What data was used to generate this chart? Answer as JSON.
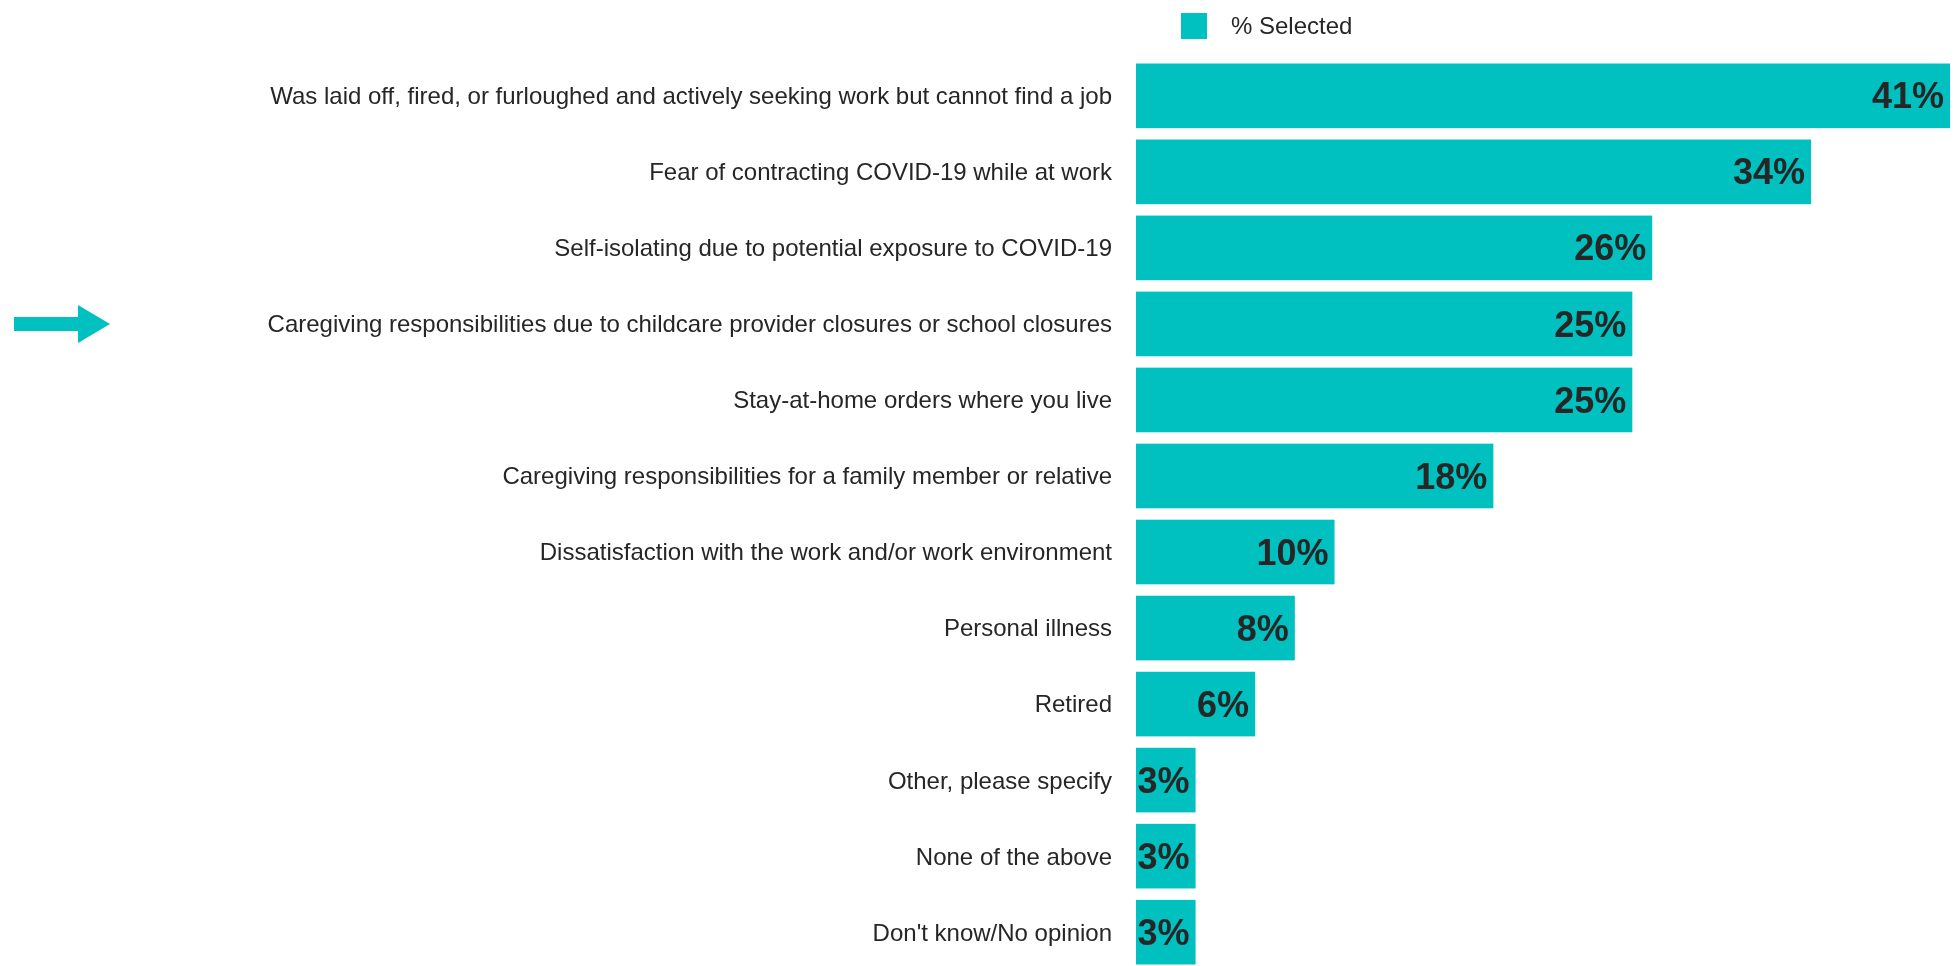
{
  "chart_data": {
    "type": "bar",
    "orientation": "horizontal",
    "categories": [
      "Was laid off, fired, or furloughed and actively seeking work but cannot find a job",
      "Fear of contracting COVID-19 while at work",
      "Self-isolating due to potential exposure to COVID-19",
      "Caregiving responsibilities due to childcare provider closures or school closures",
      "Stay-at-home orders where you live",
      "Caregiving responsibilities for a family member or relative",
      "Dissatisfaction with the work and/or work environment",
      "Personal illness",
      "Retired",
      "Other, please specify",
      "None of the above",
      "Don't know/No opinion"
    ],
    "series": [
      {
        "name": "% Selected",
        "color": "#00c0c0",
        "values": [
          41,
          34,
          26,
          25,
          25,
          18,
          10,
          8,
          6,
          3,
          3,
          3
        ],
        "value_labels": [
          "41%",
          "34%",
          "26%",
          "25%",
          "25%",
          "18%",
          "10%",
          "8%",
          "6%",
          "3%",
          "3%",
          "3%"
        ]
      }
    ],
    "legend": "top",
    "tick_labels": "y"
  }
}
